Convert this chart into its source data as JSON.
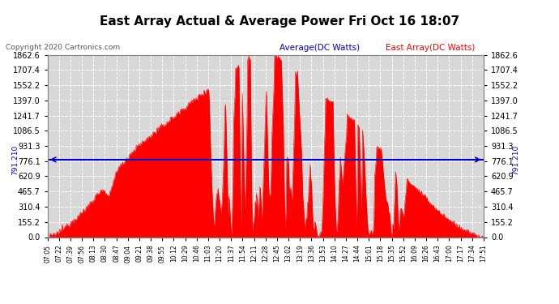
{
  "title": "East Array Actual & Average Power Fri Oct 16 18:07",
  "copyright": "Copyright 2020 Cartronics.com",
  "legend_average": "Average(DC Watts)",
  "legend_east": "East Array(DC Watts)",
  "average_value": 791.21,
  "ymax": 1862.6,
  "y_ticks": [
    0.0,
    155.2,
    310.4,
    465.7,
    620.9,
    776.1,
    931.3,
    1086.5,
    1241.7,
    1397.0,
    1552.2,
    1707.4,
    1862.6
  ],
  "x_labels": [
    "07:05",
    "07:22",
    "07:39",
    "07:56",
    "08:13",
    "08:30",
    "08:47",
    "09:04",
    "09:21",
    "09:38",
    "09:55",
    "10:12",
    "10:29",
    "10:46",
    "11:03",
    "11:20",
    "11:37",
    "11:54",
    "12:11",
    "12:28",
    "12:45",
    "13:02",
    "13:19",
    "13:36",
    "13:53",
    "14:10",
    "14:27",
    "14:44",
    "15:01",
    "15:18",
    "15:35",
    "15:52",
    "16:09",
    "16:26",
    "16:43",
    "17:00",
    "17:17",
    "17:34",
    "17:51"
  ],
  "background_color": "#ffffff",
  "plot_bg_color": "#d8d8d8",
  "fill_color": "#ff0000",
  "line_color": "#ff0000",
  "avg_line_color": "#0000cc",
  "grid_color": "#ffffff",
  "title_color": "#000000",
  "copyright_color": "#555555"
}
